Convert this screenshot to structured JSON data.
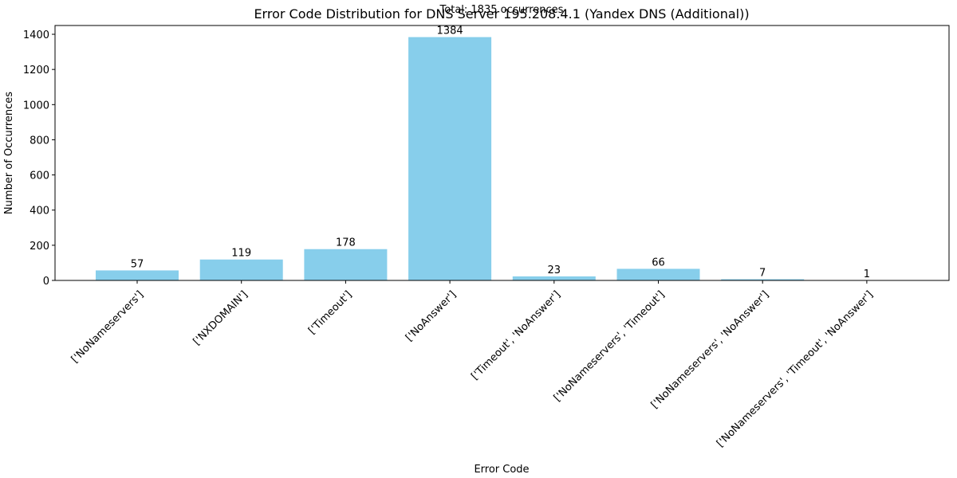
{
  "chart_data": {
    "type": "bar",
    "title": "Error Code Distribution for DNS Server 195.208.4.1 (Yandex DNS (Additional))",
    "subtitle": "Total: 1835 occurrences",
    "xlabel": "Error Code",
    "ylabel": "Number of Occurrences",
    "categories": [
      "['NoNameservers']",
      "['NXDOMAIN']",
      "['Timeout']",
      "['NoAnswer']",
      "['Timeout', 'NoAnswer']",
      "['NoNameservers', 'Timeout']",
      "['NoNameservers', 'NoAnswer']",
      "['NoNameservers', 'Timeout', 'NoAnswer']"
    ],
    "values": [
      57,
      119,
      178,
      1384,
      23,
      66,
      7,
      1
    ],
    "ylim": [
      0,
      1450
    ],
    "yticks": [
      0,
      200,
      400,
      600,
      800,
      1000,
      1200,
      1400
    ],
    "bar_color": "#87ceeb",
    "grid": false,
    "legend": "none"
  }
}
